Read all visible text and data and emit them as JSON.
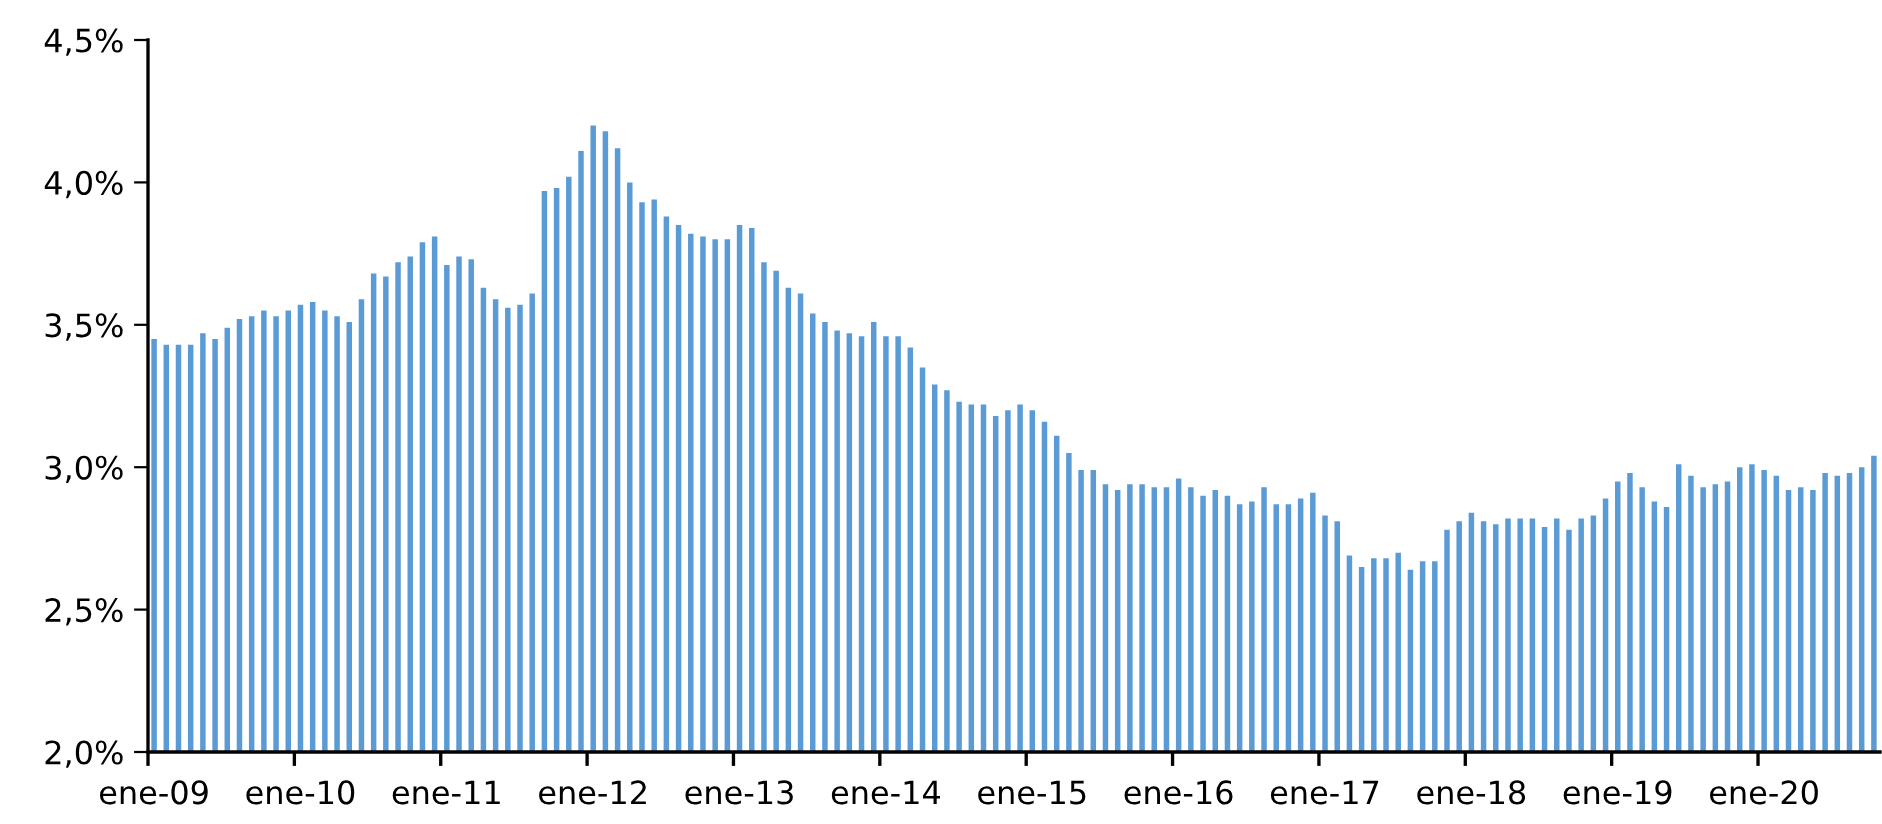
{
  "chart_data": {
    "type": "bar",
    "categories": [
      "ene-09",
      null,
      null,
      null,
      null,
      null,
      null,
      null,
      null,
      null,
      null,
      null,
      "ene-10",
      null,
      null,
      null,
      null,
      null,
      null,
      null,
      null,
      null,
      null,
      null,
      "ene-11",
      null,
      null,
      null,
      null,
      null,
      null,
      null,
      null,
      null,
      null,
      null,
      "ene-12",
      null,
      null,
      null,
      null,
      null,
      null,
      null,
      null,
      null,
      null,
      null,
      "ene-13",
      null,
      null,
      null,
      null,
      null,
      null,
      null,
      null,
      null,
      null,
      null,
      "ene-14",
      null,
      null,
      null,
      null,
      null,
      null,
      null,
      null,
      null,
      null,
      null,
      "ene-15",
      null,
      null,
      null,
      null,
      null,
      null,
      null,
      null,
      null,
      null,
      null,
      "ene-16",
      null,
      null,
      null,
      null,
      null,
      null,
      null,
      null,
      null,
      null,
      null,
      "ene-17",
      null,
      null,
      null,
      null,
      null,
      null,
      null,
      null,
      null,
      null,
      null,
      "ene-18",
      null,
      null,
      null,
      null,
      null,
      null,
      null,
      null,
      null,
      null,
      null,
      "ene-19",
      null,
      null,
      null,
      null,
      null,
      null,
      null,
      null,
      null,
      null,
      null,
      "ene-20",
      null,
      null,
      null,
      null,
      null,
      null,
      null,
      null,
      null
    ],
    "values": [
      3.45,
      3.43,
      3.43,
      3.43,
      3.47,
      3.45,
      3.49,
      3.52,
      3.53,
      3.55,
      3.53,
      3.55,
      3.57,
      3.58,
      3.55,
      3.53,
      3.51,
      3.59,
      3.68,
      3.67,
      3.72,
      3.74,
      3.79,
      3.81,
      3.71,
      3.74,
      3.73,
      3.63,
      3.59,
      3.56,
      3.57,
      3.61,
      3.97,
      3.98,
      4.02,
      4.11,
      4.2,
      4.18,
      4.12,
      4.0,
      3.93,
      3.94,
      3.88,
      3.85,
      3.82,
      3.81,
      3.8,
      3.8,
      3.85,
      3.84,
      3.72,
      3.69,
      3.63,
      3.61,
      3.54,
      3.51,
      3.48,
      3.47,
      3.46,
      3.51,
      3.46,
      3.46,
      3.42,
      3.35,
      3.29,
      3.27,
      3.23,
      3.22,
      3.22,
      3.18,
      3.2,
      3.22,
      3.2,
      3.16,
      3.11,
      3.05,
      2.99,
      2.99,
      2.94,
      2.92,
      2.94,
      2.94,
      2.93,
      2.93,
      2.96,
      2.93,
      2.9,
      2.92,
      2.9,
      2.87,
      2.88,
      2.93,
      2.87,
      2.87,
      2.89,
      2.91,
      2.83,
      2.81,
      2.69,
      2.65,
      2.68,
      2.68,
      2.7,
      2.64,
      2.67,
      2.67,
      2.78,
      2.81,
      2.84,
      2.81,
      2.8,
      2.82,
      2.82,
      2.82,
      2.79,
      2.82,
      2.78,
      2.82,
      2.83,
      2.89,
      2.95,
      2.98,
      2.93,
      2.88,
      2.86,
      3.01,
      2.97,
      2.93,
      2.94,
      2.95,
      3.0,
      3.01,
      2.99,
      2.97,
      2.92,
      2.93,
      2.92,
      2.98,
      2.97,
      2.98,
      3.0,
      3.04
    ],
    "color": "#5b9bd5",
    "ylim": [
      2.0,
      4.5
    ],
    "yticks": [
      {
        "value": 2.0,
        "label": "2,0%"
      },
      {
        "value": 2.5,
        "label": "2,5%"
      },
      {
        "value": 3.0,
        "label": "3,0%"
      },
      {
        "value": 3.5,
        "label": "3,5%"
      },
      {
        "value": 4.0,
        "label": "4,0%"
      },
      {
        "value": 4.5,
        "label": "4,5%"
      }
    ],
    "grid": false,
    "legend": false
  }
}
